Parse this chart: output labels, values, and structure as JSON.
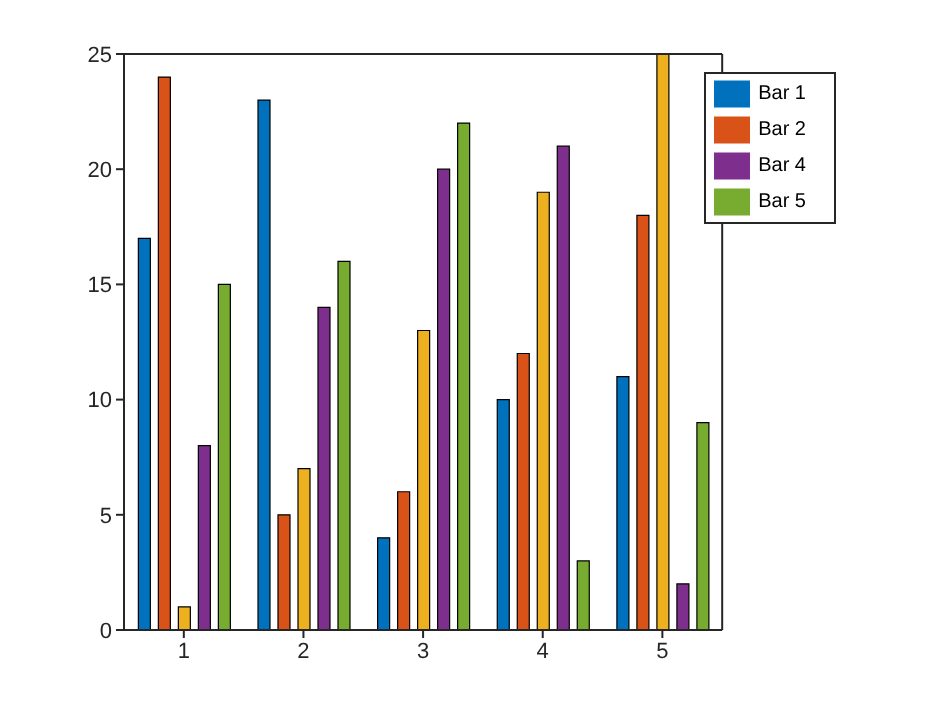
{
  "chart_data": {
    "type": "bar",
    "categories": [
      "1",
      "2",
      "3",
      "4",
      "5"
    ],
    "series": [
      {
        "name": "Bar 1",
        "color": "#0072bd",
        "values": [
          17,
          23,
          4,
          10,
          11
        ]
      },
      {
        "name": "Bar 2",
        "color": "#d95319",
        "values": [
          24,
          5,
          6,
          12,
          18
        ]
      },
      {
        "color": "#edb120",
        "values": [
          1,
          7,
          13,
          19,
          25
        ]
      },
      {
        "name": "Bar 4",
        "color": "#7e2f8e",
        "values": [
          8,
          14,
          20,
          21,
          2
        ]
      },
      {
        "name": "Bar 5",
        "color": "#77ac30",
        "values": [
          15,
          16,
          22,
          3,
          9
        ]
      }
    ],
    "ylim": [
      0,
      25
    ],
    "yticks": [
      0,
      5,
      10,
      15,
      20,
      25
    ],
    "legend": "top right"
  }
}
